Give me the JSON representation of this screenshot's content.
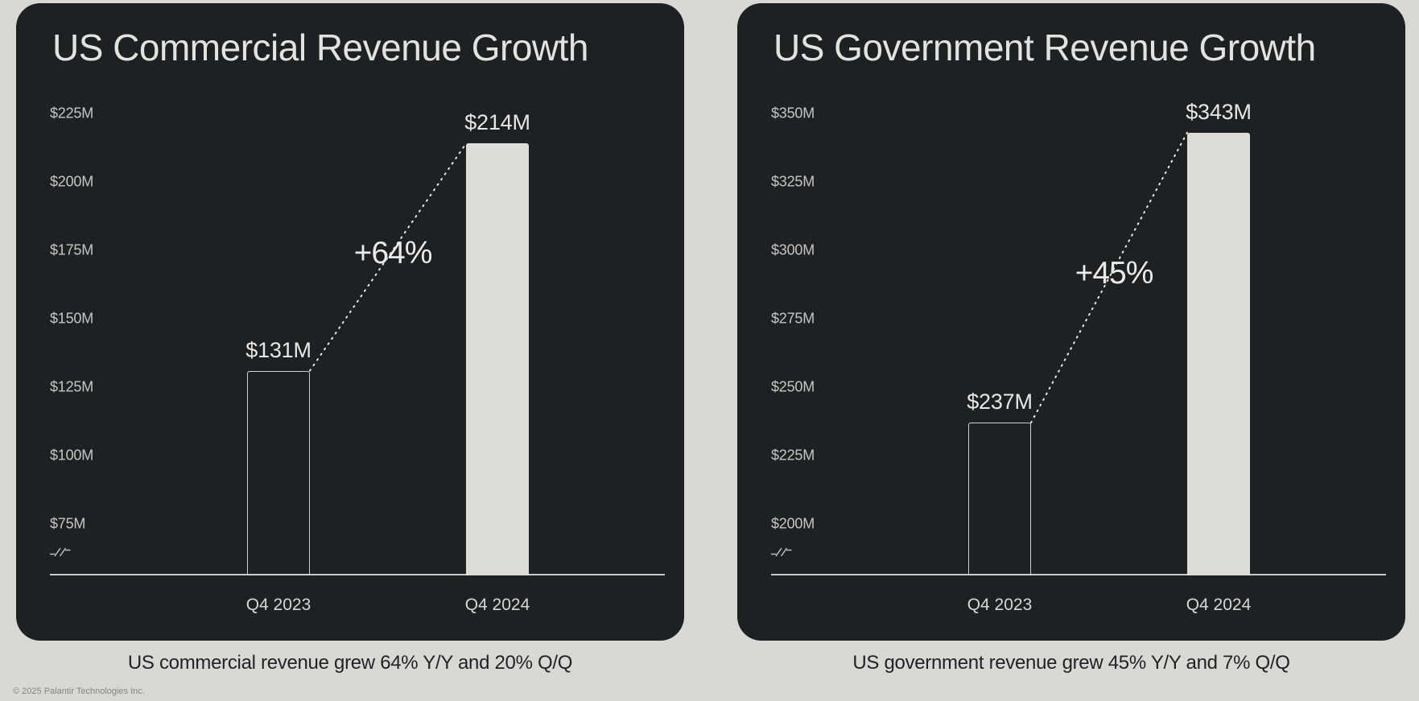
{
  "page": {
    "footer_copyright": "© 2025 Palantir Technologies Inc."
  },
  "colors": {
    "page_bg": "#dad8d4",
    "panel_bg": "#1e2124",
    "bar_fill": "#dedcd8",
    "bar_outline": "#d2d1ce",
    "title_text": "#e3e2df",
    "axis_text": "#c6c5c2",
    "value_text": "#e8e7e4",
    "growth_text": "#eceae7",
    "category_text": "#d8d7d4",
    "baseline": "#c9c8c5",
    "dotted_line": "#eceae7",
    "caption_text": "#1f2225",
    "copyright_text": "#85837f"
  },
  "chart_data": [
    {
      "type": "bar",
      "title": "US Commercial Revenue Growth",
      "categories": [
        "Q4 2023",
        "Q4 2024"
      ],
      "values": [
        131,
        214
      ],
      "value_labels": [
        "$131M",
        "$214M"
      ],
      "growth_label": "+64%",
      "y_ticks": [
        225,
        200,
        175,
        150,
        125,
        100,
        75
      ],
      "y_tick_labels": [
        "$225M",
        "$200M",
        "$175M",
        "$150M",
        "$125M",
        "$100M",
        "$75M"
      ],
      "y_tick_step": 25,
      "ylim_shown": [
        75,
        225
      ],
      "axis_break": true,
      "axis_break_symbol": "-//-",
      "grid": false,
      "legend": "none",
      "bar_styles": [
        "outlined",
        "filled"
      ],
      "caption": "US commercial revenue grew 64% Y/Y and 20% Q/Q"
    },
    {
      "type": "bar",
      "title": "US Government Revenue Growth",
      "categories": [
        "Q4 2023",
        "Q4 2024"
      ],
      "values": [
        237,
        343
      ],
      "value_labels": [
        "$237M",
        "$343M"
      ],
      "growth_label": "+45%",
      "y_ticks": [
        350,
        325,
        300,
        275,
        250,
        225,
        200
      ],
      "y_tick_labels": [
        "$350M",
        "$325M",
        "$300M",
        "$275M",
        "$250M",
        "$225M",
        "$200M"
      ],
      "y_tick_step": 25,
      "ylim_shown": [
        200,
        350
      ],
      "axis_break": true,
      "axis_break_symbol": "-//-",
      "grid": false,
      "legend": "none",
      "bar_styles": [
        "outlined",
        "filled"
      ],
      "caption": "US government revenue grew 45% Y/Y and 7% Q/Q"
    }
  ]
}
